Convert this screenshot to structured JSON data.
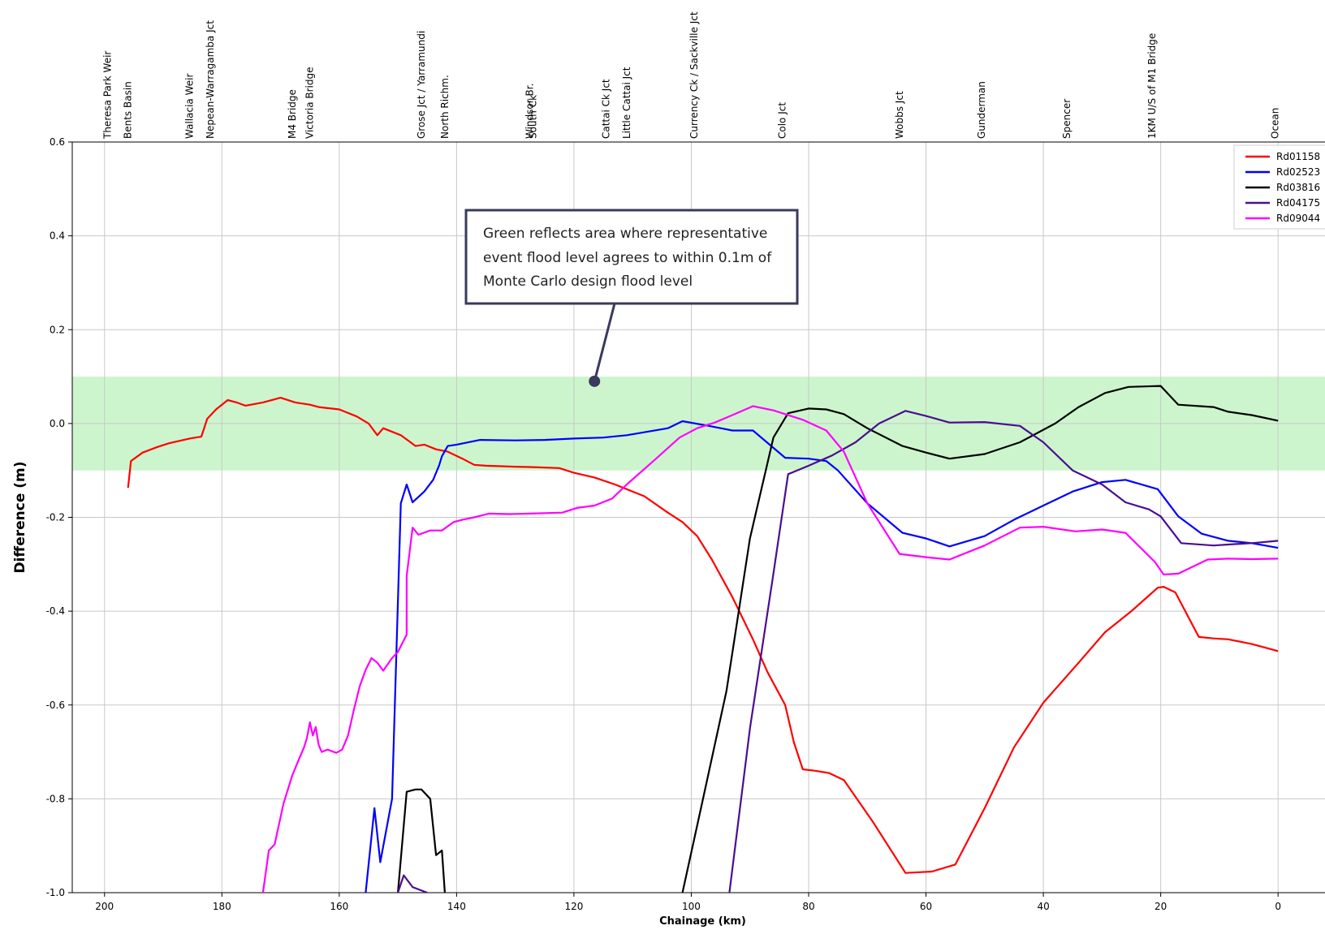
{
  "chart_data": {
    "type": "line",
    "xlabel": "Chainage (km)",
    "ylabel": "Difference (m)",
    "xlim": [
      205.5,
      -8
    ],
    "ylim": [
      -1.0,
      0.6
    ],
    "x_ticks": [
      200,
      180,
      160,
      140,
      120,
      100,
      80,
      60,
      40,
      20,
      0
    ],
    "y_ticks": [
      0.6,
      0.4,
      0.2,
      0.0,
      -0.2,
      -0.4,
      -0.6,
      -0.8,
      -1.0
    ],
    "x_tick_labels": [
      "200",
      "180",
      "160",
      "140",
      "120",
      "100",
      "80",
      "60",
      "40",
      "20",
      "0"
    ],
    "y_tick_labels": [
      "0.6",
      "0.4",
      "0.2",
      "0.0",
      "-0.2",
      "-0.4",
      "-0.6",
      "-0.8",
      "-1.0"
    ],
    "grid": true,
    "legend_position": "top-right",
    "band": {
      "ymin": -0.1,
      "ymax": 0.1,
      "color": "#cdf5cd"
    },
    "annotation": {
      "lines": [
        "Green reflects area where representative",
        "event flood level agrees to within 0.1m of",
        "Monte Carlo design flood level"
      ],
      "point": [
        116.5,
        0.09
      ]
    },
    "locations": [
      {
        "x": 199.5,
        "label": "Theresa Park Weir"
      },
      {
        "x": 196,
        "label": "Bents Basin"
      },
      {
        "x": 185.5,
        "label": "Wallacia Weir"
      },
      {
        "x": 182,
        "label": "Nepean-Warragamba Jct"
      },
      {
        "x": 168,
        "label": "M4 Bridge"
      },
      {
        "x": 165,
        "label": "Victoria Bridge"
      },
      {
        "x": 146,
        "label": "Grose Jct / Yarramundi"
      },
      {
        "x": 142,
        "label": "North Richm."
      },
      {
        "x": 127.5,
        "label": "Windsor Br."
      },
      {
        "x": 127,
        "label": "South Ck"
      },
      {
        "x": 114.5,
        "label": "Cattai Ck Jct"
      },
      {
        "x": 111,
        "label": "Little Cattai Jct"
      },
      {
        "x": 99.5,
        "label": "Currency Ck / Sackville Jct"
      },
      {
        "x": 84.5,
        "label": "Colo Jct"
      },
      {
        "x": 64.5,
        "label": "Wobbs Jct"
      },
      {
        "x": 50.5,
        "label": "Gunderman"
      },
      {
        "x": 36,
        "label": "Spencer"
      },
      {
        "x": 21.5,
        "label": "1KM U/S of M1 Bridge"
      },
      {
        "x": 0.5,
        "label": "Ocean"
      }
    ],
    "series": [
      {
        "name": "Rd01158",
        "color": "#ff0000",
        "segments": [
          [
            [
              196,
              -0.137
            ],
            [
              195.5,
              -0.08
            ],
            [
              193.5,
              -0.062
            ],
            [
              191,
              -0.05
            ],
            [
              189,
              -0.042
            ],
            [
              185.5,
              -0.032
            ],
            [
              184.5,
              -0.03
            ],
            [
              183.5,
              -0.028
            ],
            [
              182.5,
              0.01
            ],
            [
              181,
              0.03
            ],
            [
              179,
              0.05
            ],
            [
              177.5,
              0.045
            ],
            [
              176,
              0.038
            ],
            [
              173,
              0.045
            ],
            [
              170,
              0.055
            ],
            [
              167.5,
              0.045
            ],
            [
              165,
              0.04
            ],
            [
              163.5,
              0.035
            ],
            [
              160,
              0.03
            ],
            [
              157,
              0.015
            ],
            [
              155,
              0.0
            ],
            [
              153.5,
              -0.025
            ],
            [
              152.5,
              -0.01
            ],
            [
              149.5,
              -0.025
            ],
            [
              147,
              -0.048
            ],
            [
              145.5,
              -0.045
            ],
            [
              143.5,
              -0.055
            ],
            [
              141.5,
              -0.06
            ],
            [
              139,
              -0.075
            ],
            [
              137,
              -0.088
            ],
            [
              135,
              -0.09
            ],
            [
              130,
              -0.092
            ],
            [
              127,
              -0.093
            ],
            [
              122.5,
              -0.095
            ],
            [
              120,
              -0.105
            ],
            [
              116.5,
              -0.115
            ],
            [
              113,
              -0.13
            ],
            [
              108,
              -0.155
            ],
            [
              104,
              -0.19
            ],
            [
              101.5,
              -0.21
            ],
            [
              99,
              -0.24
            ],
            [
              96.5,
              -0.29
            ],
            [
              93,
              -0.37
            ],
            [
              89.5,
              -0.46
            ],
            [
              87,
              -0.53
            ],
            [
              84,
              -0.6
            ],
            [
              82.5,
              -0.68
            ],
            [
              81,
              -0.737
            ],
            [
              79,
              -0.74
            ],
            [
              76.5,
              -0.745
            ],
            [
              74,
              -0.76
            ],
            [
              69,
              -0.85
            ],
            [
              63.5,
              -0.958
            ],
            [
              59,
              -0.955
            ],
            [
              55,
              -0.94
            ],
            [
              50,
              -0.82
            ],
            [
              45,
              -0.69
            ],
            [
              40,
              -0.595
            ],
            [
              34,
              -0.51
            ],
            [
              29.5,
              -0.445
            ],
            [
              25,
              -0.4
            ],
            [
              20.5,
              -0.35
            ],
            [
              19.5,
              -0.348
            ],
            [
              17.5,
              -0.36
            ],
            [
              13.5,
              -0.455
            ],
            [
              11,
              -0.458
            ],
            [
              8.5,
              -0.46
            ],
            [
              4.5,
              -0.47
            ],
            [
              0,
              -0.485
            ]
          ]
        ]
      },
      {
        "name": "Rd02523",
        "color": "#0000ff",
        "segments": [
          [
            [
              155.5,
              -1.0
            ],
            [
              154,
              -0.82
            ],
            [
              153,
              -0.935
            ],
            [
              151,
              -0.8
            ],
            [
              149.5,
              -0.17
            ],
            [
              148.5,
              -0.13
            ],
            [
              147.5,
              -0.168
            ],
            [
              145.5,
              -0.145
            ],
            [
              144,
              -0.12
            ],
            [
              143,
              -0.09
            ],
            [
              142.5,
              -0.07
            ],
            [
              141.5,
              -0.048
            ],
            [
              140,
              -0.045
            ],
            [
              136,
              -0.035
            ],
            [
              130,
              -0.036
            ],
            [
              125,
              -0.035
            ],
            [
              120,
              -0.032
            ],
            [
              115,
              -0.03
            ],
            [
              111,
              -0.025
            ],
            [
              104,
              -0.01
            ],
            [
              101.5,
              0.005
            ],
            [
              97,
              -0.005
            ],
            [
              93,
              -0.015
            ],
            [
              89.5,
              -0.015
            ],
            [
              84,
              -0.073
            ],
            [
              80,
              -0.075
            ],
            [
              77,
              -0.08
            ],
            [
              75,
              -0.1
            ],
            [
              70,
              -0.17
            ],
            [
              64,
              -0.233
            ],
            [
              60,
              -0.245
            ],
            [
              56,
              -0.262
            ],
            [
              50,
              -0.24
            ],
            [
              45,
              -0.205
            ],
            [
              40,
              -0.175
            ],
            [
              35,
              -0.145
            ],
            [
              30,
              -0.125
            ],
            [
              26,
              -0.12
            ],
            [
              20.5,
              -0.14
            ],
            [
              17,
              -0.198
            ],
            [
              13,
              -0.235
            ],
            [
              8.5,
              -0.25
            ],
            [
              4.5,
              -0.255
            ],
            [
              0,
              -0.265
            ]
          ]
        ]
      },
      {
        "name": "Rd03816",
        "color": "#000000",
        "segments": [
          [
            [
              150,
              -1.0
            ],
            [
              148.5,
              -0.785
            ],
            [
              147,
              -0.78
            ],
            [
              146,
              -0.78
            ],
            [
              144.5,
              -0.8
            ],
            [
              143.5,
              -0.92
            ],
            [
              142.5,
              -0.91
            ],
            [
              142,
              -1.0
            ]
          ],
          [
            [
              101.5,
              -1.0
            ],
            [
              98,
              -0.8
            ],
            [
              94,
              -0.57
            ],
            [
              90,
              -0.245
            ],
            [
              86,
              -0.03
            ],
            [
              83.5,
              0.022
            ],
            [
              80,
              0.032
            ],
            [
              77,
              0.03
            ],
            [
              74,
              0.02
            ],
            [
              70,
              -0.01
            ],
            [
              64,
              -0.048
            ],
            [
              60,
              -0.062
            ],
            [
              56,
              -0.075
            ],
            [
              50,
              -0.065
            ],
            [
              44,
              -0.04
            ],
            [
              38,
              0.0
            ],
            [
              34,
              0.035
            ],
            [
              29.5,
              0.065
            ],
            [
              25.5,
              0.078
            ],
            [
              20,
              0.08
            ],
            [
              17,
              0.04
            ],
            [
              11,
              0.035
            ],
            [
              8.5,
              0.025
            ],
            [
              4.5,
              0.018
            ],
            [
              0,
              0.006
            ]
          ]
        ]
      },
      {
        "name": "Rd04175",
        "color": "#4a0e8f",
        "segments": [
          [
            [
              150,
              -1.0
            ],
            [
              149,
              -0.963
            ],
            [
              147.5,
              -0.988
            ],
            [
              145,
              -1.0
            ]
          ],
          [
            [
              93.5,
              -1.0
            ],
            [
              90,
              -0.65
            ],
            [
              86,
              -0.32
            ],
            [
              83.5,
              -0.108
            ],
            [
              80,
              -0.09
            ],
            [
              76,
              -0.068
            ],
            [
              72,
              -0.04
            ],
            [
              68,
              0.0
            ],
            [
              63.5,
              0.027
            ],
            [
              60,
              0.016
            ],
            [
              56,
              0.002
            ],
            [
              50,
              0.003
            ],
            [
              44,
              -0.005
            ],
            [
              40,
              -0.04
            ],
            [
              35,
              -0.1
            ],
            [
              30,
              -0.13
            ],
            [
              26,
              -0.168
            ],
            [
              22,
              -0.183
            ],
            [
              20,
              -0.198
            ],
            [
              16.5,
              -0.255
            ],
            [
              11,
              -0.26
            ],
            [
              8.5,
              -0.258
            ],
            [
              4.5,
              -0.255
            ],
            [
              0,
              -0.25
            ]
          ]
        ]
      },
      {
        "name": "Rd09044",
        "color": "#ff00ff",
        "segments": [
          [
            [
              173,
              -1.0
            ],
            [
              172,
              -0.91
            ],
            [
              171,
              -0.897
            ],
            [
              169.5,
              -0.81
            ],
            [
              168,
              -0.75
            ],
            [
              167,
              -0.72
            ],
            [
              166,
              -0.69
            ],
            [
              165.5,
              -0.67
            ],
            [
              165,
              -0.637
            ],
            [
              164.5,
              -0.665
            ],
            [
              164,
              -0.647
            ],
            [
              163.5,
              -0.685
            ],
            [
              163,
              -0.7
            ],
            [
              162,
              -0.695
            ],
            [
              160.5,
              -0.702
            ],
            [
              159.5,
              -0.695
            ],
            [
              158.5,
              -0.665
            ],
            [
              157.5,
              -0.61
            ],
            [
              156.5,
              -0.56
            ],
            [
              155.5,
              -0.525
            ],
            [
              154.5,
              -0.5
            ],
            [
              153.5,
              -0.51
            ],
            [
              152.5,
              -0.527
            ],
            [
              151,
              -0.5
            ],
            [
              150,
              -0.487
            ],
            [
              148.5,
              -0.45
            ],
            [
              148.5,
              -0.325
            ],
            [
              147.5,
              -0.222
            ],
            [
              146.5,
              -0.237
            ],
            [
              144.5,
              -0.228
            ],
            [
              142.5,
              -0.228
            ],
            [
              140.5,
              -0.21
            ],
            [
              139,
              -0.205
            ],
            [
              137,
              -0.2
            ],
            [
              134.5,
              -0.192
            ],
            [
              131,
              -0.193
            ],
            [
              127.5,
              -0.192
            ],
            [
              122,
              -0.19
            ],
            [
              119.5,
              -0.18
            ],
            [
              116.5,
              -0.175
            ],
            [
              113.5,
              -0.16
            ],
            [
              111,
              -0.13
            ],
            [
              106,
              -0.075
            ],
            [
              102,
              -0.03
            ],
            [
              99,
              -0.01
            ],
            [
              96,
              0.002
            ],
            [
              93,
              0.018
            ],
            [
              89.5,
              0.037
            ],
            [
              86,
              0.028
            ],
            [
              81,
              0.008
            ],
            [
              77,
              -0.015
            ],
            [
              74,
              -0.06
            ],
            [
              70,
              -0.17
            ],
            [
              64.5,
              -0.278
            ],
            [
              60,
              -0.285
            ],
            [
              56,
              -0.29
            ],
            [
              50,
              -0.26
            ],
            [
              44,
              -0.222
            ],
            [
              40,
              -0.22
            ],
            [
              34.5,
              -0.23
            ],
            [
              30,
              -0.226
            ],
            [
              26,
              -0.233
            ],
            [
              21,
              -0.295
            ],
            [
              19.5,
              -0.322
            ],
            [
              17,
              -0.32
            ],
            [
              12,
              -0.29
            ],
            [
              8.5,
              -0.288
            ],
            [
              4.5,
              -0.289
            ],
            [
              0,
              -0.288
            ]
          ]
        ]
      }
    ]
  }
}
